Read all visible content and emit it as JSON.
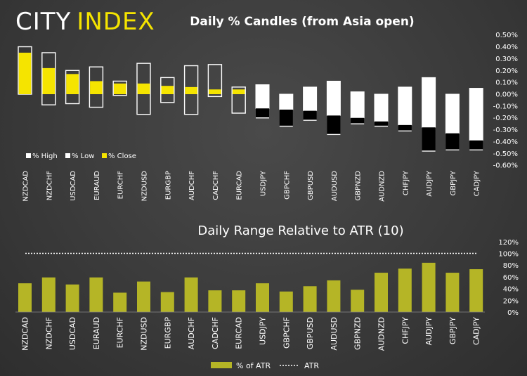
{
  "brand": {
    "word1": "CITY",
    "word2": "INDEX",
    "color1": "#ffffff",
    "color2": "#f5e400"
  },
  "colors": {
    "close": "#f5e400",
    "atr_bar": "#b5b526",
    "white": "#ffffff",
    "black": "#000000"
  },
  "chart_data": [
    {
      "type": "bar",
      "title": "Daily % Candles (from Asia open)",
      "categories": [
        "NZDCAD",
        "NZDCHF",
        "USDCAD",
        "EURAUD",
        "EURCHF",
        "NZDUSD",
        "EURGBP",
        "AUDCHF",
        "CADCHF",
        "EURCAD",
        "USDJPY",
        "GBPCHF",
        "GBPUSD",
        "AUDUSD",
        "GBPNZD",
        "AUDNZD",
        "CHFJPY",
        "AUDJPY",
        "GBPJPY",
        "CADJPY"
      ],
      "series": [
        {
          "name": "% High",
          "values": [
            0.4,
            0.35,
            0.2,
            0.23,
            0.11,
            0.26,
            0.14,
            0.24,
            0.25,
            0.06,
            0.08,
            0.0,
            0.06,
            0.11,
            0.02,
            0.0,
            0.06,
            0.14,
            0.0,
            0.05
          ]
        },
        {
          "name": "% Low",
          "values": [
            0.0,
            -0.09,
            -0.08,
            -0.11,
            -0.01,
            -0.17,
            -0.07,
            -0.17,
            -0.02,
            -0.16,
            -0.2,
            -0.27,
            -0.22,
            -0.34,
            -0.25,
            -0.27,
            -0.31,
            -0.48,
            -0.47,
            -0.47
          ]
        },
        {
          "name": "% Close",
          "values": [
            0.35,
            0.22,
            0.17,
            0.11,
            0.09,
            0.09,
            0.07,
            0.06,
            0.04,
            0.04,
            -0.12,
            -0.13,
            -0.14,
            -0.18,
            -0.2,
            -0.23,
            -0.26,
            -0.28,
            -0.33,
            -0.39
          ]
        }
      ],
      "ylim": [
        -0.6,
        0.5
      ],
      "yticks": [
        "0.50%",
        "0.40%",
        "0.30%",
        "0.20%",
        "0.10%",
        "0.00%",
        "-0.10%",
        "-0.20%",
        "-0.30%",
        "-0.40%",
        "-0.50%",
        "-0.60%"
      ],
      "legend_position": "bottom-left",
      "grid": false
    },
    {
      "type": "bar",
      "title": "Daily Range Relative to ATR (10)",
      "categories": [
        "NZDCAD",
        "NZDCHF",
        "USDCAD",
        "EURAUD",
        "EURCHF",
        "NZDUSD",
        "EURGBP",
        "AUDCHF",
        "CADCHF",
        "EURCAD",
        "USDJPY",
        "GBPCHF",
        "GBPUSD",
        "AUDUSD",
        "GBPNZD",
        "AUDNZD",
        "CHFJPY",
        "AUDJPY",
        "GBPJPY",
        "CADJPY"
      ],
      "series": [
        {
          "name": "% of ATR",
          "values": [
            49,
            59,
            47,
            59,
            33,
            52,
            34,
            59,
            37,
            37,
            49,
            35,
            44,
            54,
            38,
            67,
            74,
            84,
            67,
            73
          ]
        },
        {
          "name": "ATR",
          "values": [
            100,
            100,
            100,
            100,
            100,
            100,
            100,
            100,
            100,
            100,
            100,
            100,
            100,
            100,
            100,
            100,
            100,
            100,
            100,
            100
          ]
        }
      ],
      "ylim": [
        0,
        120
      ],
      "yticks": [
        "120%",
        "100%",
        "80%",
        "60%",
        "40%",
        "20%",
        "0%"
      ],
      "legend_position": "bottom-center",
      "grid": false
    }
  ]
}
